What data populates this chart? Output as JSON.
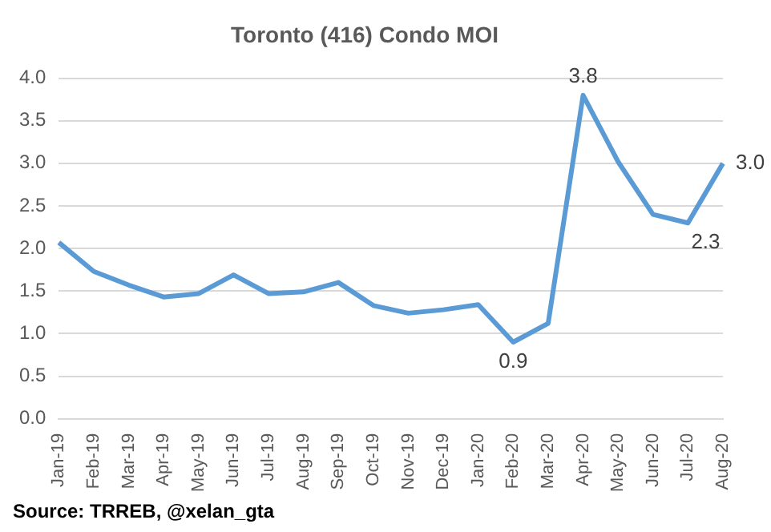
{
  "chart_data": {
    "type": "line",
    "title": "Toronto (416) Condo MOI",
    "categories": [
      "Jan-19",
      "Feb-19",
      "Mar-19",
      "Apr-19",
      "May-19",
      "Jun-19",
      "Jul-19",
      "Aug-19",
      "Sep-19",
      "Oct-19",
      "Nov-19",
      "Dec-19",
      "Jan-20",
      "Feb-20",
      "Mar-20",
      "Apr-20",
      "May-20",
      "Jun-20",
      "Jul-20",
      "Aug-20"
    ],
    "series": [
      {
        "color": "#5b9bd5",
        "values": [
          2.07,
          1.73,
          1.57,
          1.43,
          1.47,
          1.69,
          1.47,
          1.49,
          1.6,
          1.33,
          1.24,
          1.28,
          1.34,
          0.9,
          1.12,
          3.8,
          3.02,
          2.4,
          2.3,
          3.0
        ],
        "value_labels": [
          null,
          null,
          null,
          null,
          null,
          null,
          null,
          null,
          null,
          null,
          null,
          null,
          null,
          "0.9",
          null,
          "3.8",
          null,
          null,
          "2.3",
          "3.0"
        ]
      }
    ],
    "ylim": [
      0,
      4
    ],
    "yticks": [
      {
        "value": 0,
        "label": "0.0"
      },
      0.5,
      {
        "value": 1,
        "label": "1.0"
      },
      1.5,
      {
        "value": 2,
        "label": "2.0"
      },
      2.5,
      {
        "value": 3,
        "label": "3.0"
      },
      3.5,
      {
        "value": 4,
        "label": "4.0"
      }
    ],
    "grid": "y",
    "legend": false,
    "marker": "none",
    "line_style": "solid",
    "annotations": [
      "Source: TRREB, @xelan_gta"
    ]
  }
}
